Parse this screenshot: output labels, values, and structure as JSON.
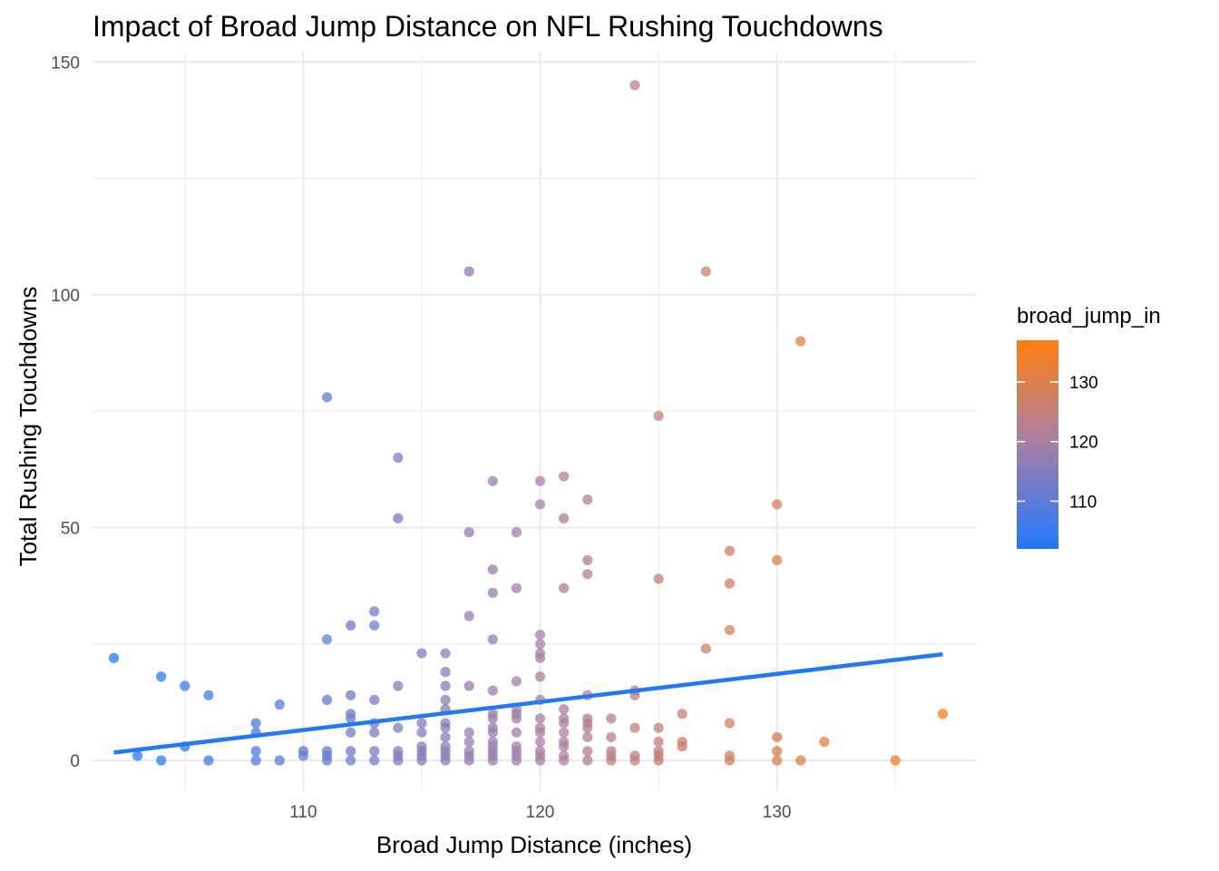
{
  "chart_data": {
    "type": "scatter",
    "title": "Impact of Broad Jump Distance on NFL Rushing Touchdowns",
    "xlabel": "Broad Jump Distance (inches)",
    "ylabel": "Total Rushing Touchdowns",
    "xlim": [
      101.1,
      138.4
    ],
    "ylim": [
      -6.6,
      152
    ],
    "x_ticks": [
      110,
      120,
      130
    ],
    "y_ticks": [
      0,
      50,
      100,
      150
    ],
    "grid": true,
    "points": [
      [
        102,
        22
      ],
      [
        103,
        1
      ],
      [
        104,
        18
      ],
      [
        104,
        0
      ],
      [
        105,
        16
      ],
      [
        105,
        3
      ],
      [
        106,
        14
      ],
      [
        106,
        0
      ],
      [
        108,
        8
      ],
      [
        108,
        6
      ],
      [
        108,
        2
      ],
      [
        108,
        0
      ],
      [
        109,
        12
      ],
      [
        109,
        0
      ],
      [
        110,
        2
      ],
      [
        110,
        1
      ],
      [
        111,
        78
      ],
      [
        111,
        26
      ],
      [
        111,
        13
      ],
      [
        111,
        2
      ],
      [
        111,
        1
      ],
      [
        111,
        0
      ],
      [
        112,
        29
      ],
      [
        112,
        14
      ],
      [
        112,
        10
      ],
      [
        112,
        9
      ],
      [
        112,
        6
      ],
      [
        112,
        2
      ],
      [
        112,
        0
      ],
      [
        113,
        32
      ],
      [
        113,
        29
      ],
      [
        113,
        13
      ],
      [
        113,
        8
      ],
      [
        113,
        6
      ],
      [
        113,
        2
      ],
      [
        113,
        0
      ],
      [
        114,
        65
      ],
      [
        114,
        52
      ],
      [
        114,
        16
      ],
      [
        114,
        7
      ],
      [
        114,
        2
      ],
      [
        114,
        1
      ],
      [
        114,
        0
      ],
      [
        115,
        23
      ],
      [
        115,
        8
      ],
      [
        115,
        6
      ],
      [
        115,
        3
      ],
      [
        115,
        2
      ],
      [
        115,
        1
      ],
      [
        115,
        0
      ],
      [
        116,
        23
      ],
      [
        116,
        19
      ],
      [
        116,
        16
      ],
      [
        116,
        13
      ],
      [
        116,
        11
      ],
      [
        116,
        8
      ],
      [
        116,
        7
      ],
      [
        116,
        5
      ],
      [
        116,
        3
      ],
      [
        116,
        2
      ],
      [
        116,
        1
      ],
      [
        116,
        0
      ],
      [
        117,
        105
      ],
      [
        117,
        49
      ],
      [
        117,
        31
      ],
      [
        117,
        16
      ],
      [
        117,
        6
      ],
      [
        117,
        4
      ],
      [
        117,
        2
      ],
      [
        117,
        1
      ],
      [
        117,
        0
      ],
      [
        118,
        60
      ],
      [
        118,
        41
      ],
      [
        118,
        36
      ],
      [
        118,
        26
      ],
      [
        118,
        15
      ],
      [
        118,
        10
      ],
      [
        118,
        9
      ],
      [
        118,
        7
      ],
      [
        118,
        6
      ],
      [
        118,
        4
      ],
      [
        118,
        3
      ],
      [
        118,
        2
      ],
      [
        118,
        1
      ],
      [
        118,
        0
      ],
      [
        119,
        49
      ],
      [
        119,
        37
      ],
      [
        119,
        17
      ],
      [
        119,
        11
      ],
      [
        119,
        10
      ],
      [
        119,
        9
      ],
      [
        119,
        6
      ],
      [
        119,
        3
      ],
      [
        119,
        2
      ],
      [
        119,
        1
      ],
      [
        119,
        0
      ],
      [
        120,
        60
      ],
      [
        120,
        55
      ],
      [
        120,
        27
      ],
      [
        120,
        25
      ],
      [
        120,
        23
      ],
      [
        120,
        22
      ],
      [
        120,
        18
      ],
      [
        120,
        13
      ],
      [
        120,
        9
      ],
      [
        120,
        7
      ],
      [
        120,
        6
      ],
      [
        120,
        4
      ],
      [
        120,
        2
      ],
      [
        120,
        1
      ],
      [
        120,
        0
      ],
      [
        121,
        61
      ],
      [
        121,
        52
      ],
      [
        121,
        37
      ],
      [
        121,
        11
      ],
      [
        121,
        9
      ],
      [
        121,
        8
      ],
      [
        121,
        6
      ],
      [
        121,
        4
      ],
      [
        121,
        3
      ],
      [
        121,
        1
      ],
      [
        121,
        0
      ],
      [
        122,
        56
      ],
      [
        122,
        43
      ],
      [
        122,
        40
      ],
      [
        122,
        14
      ],
      [
        122,
        9
      ],
      [
        122,
        8
      ],
      [
        122,
        7
      ],
      [
        122,
        5
      ],
      [
        122,
        2
      ],
      [
        122,
        0
      ],
      [
        123,
        9
      ],
      [
        123,
        5
      ],
      [
        123,
        2
      ],
      [
        123,
        1
      ],
      [
        123,
        0
      ],
      [
        124,
        145
      ],
      [
        124,
        15
      ],
      [
        124,
        14
      ],
      [
        124,
        7
      ],
      [
        124,
        1
      ],
      [
        124,
        0
      ],
      [
        125,
        74
      ],
      [
        125,
        39
      ],
      [
        125,
        7
      ],
      [
        125,
        4
      ],
      [
        125,
        2
      ],
      [
        125,
        1
      ],
      [
        125,
        0
      ],
      [
        126,
        10
      ],
      [
        126,
        4
      ],
      [
        126,
        3
      ],
      [
        127,
        105
      ],
      [
        127,
        24
      ],
      [
        128,
        45
      ],
      [
        128,
        38
      ],
      [
        128,
        28
      ],
      [
        128,
        8
      ],
      [
        128,
        1
      ],
      [
        128,
        0
      ],
      [
        130,
        55
      ],
      [
        130,
        43
      ],
      [
        130,
        5
      ],
      [
        130,
        2
      ],
      [
        130,
        0
      ],
      [
        131,
        90
      ],
      [
        131,
        0
      ],
      [
        132,
        4
      ],
      [
        135,
        0
      ],
      [
        137,
        10
      ]
    ],
    "trend_line": {
      "color": "#1F78FF",
      "x": [
        102,
        137
      ],
      "y": [
        1.7,
        22.8
      ]
    },
    "legend": {
      "title": "broad_jump_in",
      "placement": "right",
      "range": [
        102,
        137
      ],
      "ticks": [
        110,
        120,
        130
      ],
      "color_low": "#1F78FF",
      "color_mid": "#A67FA7",
      "color_high": "#FF7F0E"
    }
  }
}
